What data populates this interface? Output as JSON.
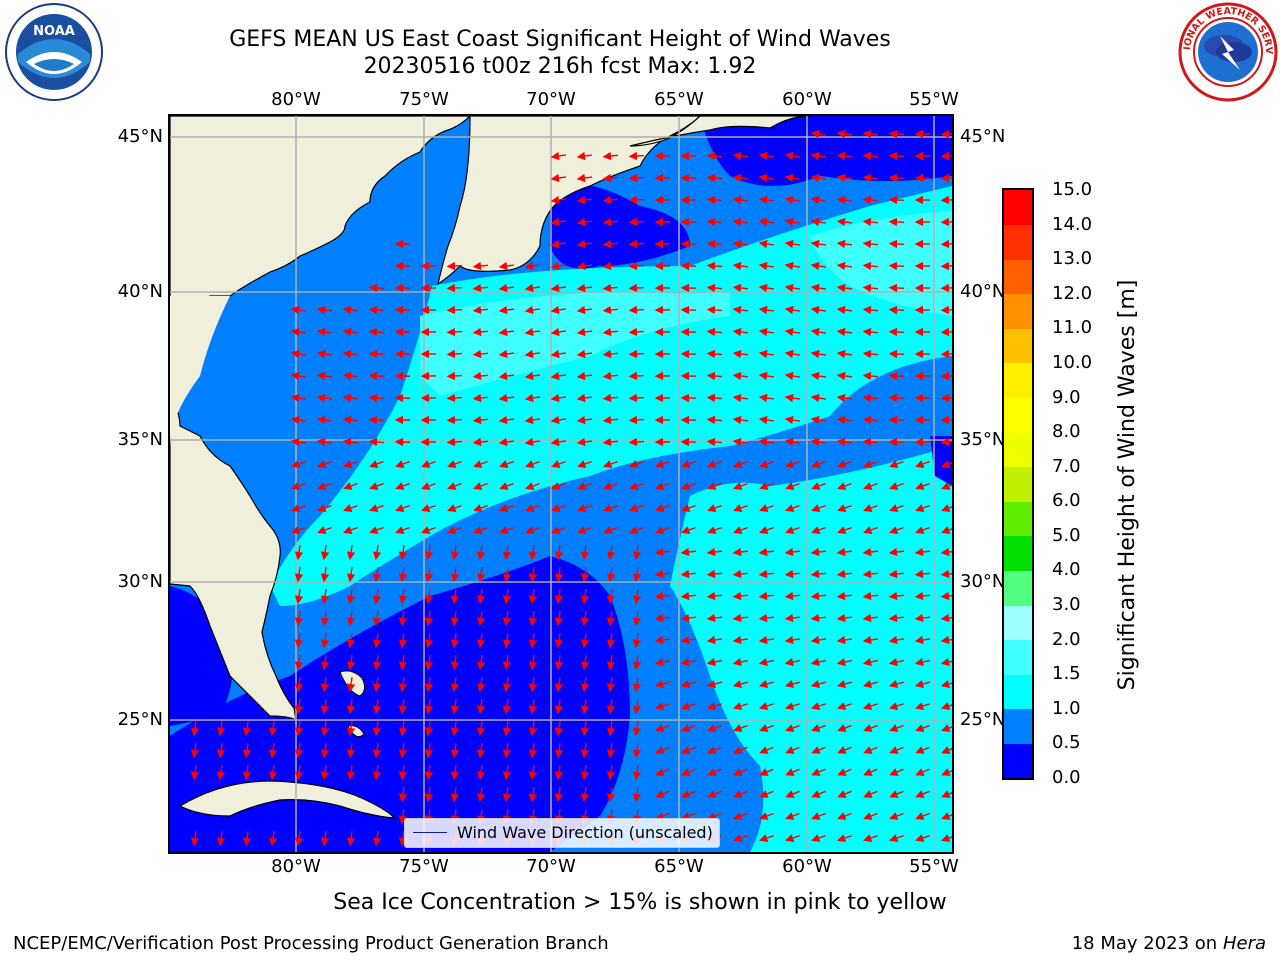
{
  "header": {
    "title": "GEFS MEAN US East Coast Significant Height of Wind Waves",
    "subtitle": "20230516 t00z 216h fcst   Max: 1.92"
  },
  "logos": {
    "left": "NOAA",
    "right": "NATIONAL WEATHER SERVICE"
  },
  "map": {
    "lon_labels": [
      "80°W",
      "75°W",
      "70°W",
      "65°W",
      "60°W",
      "55°W"
    ],
    "lat_labels": [
      "45°N",
      "40°N",
      "35°N",
      "30°N",
      "25°N"
    ],
    "land_color": "#efefdc",
    "legend_label": "Wind Wave Direction (unscaled)"
  },
  "colorbar": {
    "title": "Significant Height of Wind Waves [m]",
    "labels": [
      "15.0",
      "14.0",
      "13.0",
      "12.0",
      "11.0",
      "10.0",
      "9.0",
      "8.0",
      "7.0",
      "6.0",
      "5.0",
      "4.0",
      "3.0",
      "2.0",
      "1.5",
      "1.0",
      "0.5",
      "0.0"
    ],
    "colors": [
      "#0000ff",
      "#0080ff",
      "#00ffff",
      "#40ffff",
      "#a0ffff",
      "#50ff80",
      "#00e000",
      "#60ee00",
      "#c0f000",
      "#eeff00",
      "#ffff00",
      "#fff000",
      "#ffc000",
      "#ff9000",
      "#ff6000",
      "#ff3000",
      "#ff0000"
    ]
  },
  "footer": {
    "note": "Sea Ice Concentration > 15% is shown in pink to yellow",
    "credit": "NCEP/EMC/Verification Post Processing Product Generation Branch",
    "date": "18 May 2023 on",
    "machine": "Hera"
  }
}
